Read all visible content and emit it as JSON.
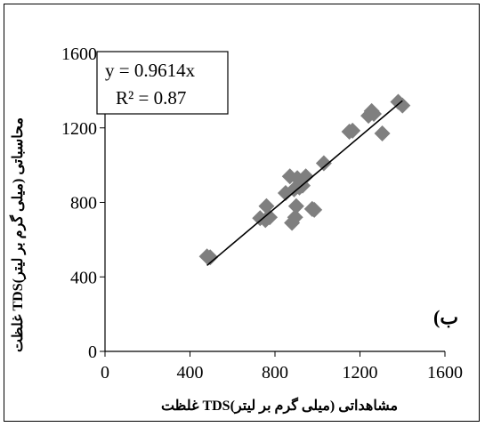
{
  "chart_data": {
    "type": "scatter",
    "title": "",
    "xlabel": "غلظت TDSمشاهداتی (میلی گرم بر لیتر)",
    "ylabel": "غلظت TDSمحاسباتی (میلی گرم بر لیتر)",
    "xlim": [
      0,
      1600
    ],
    "ylim": [
      0,
      1600
    ],
    "x_ticks": [
      "0",
      "400",
      "800",
      "1200",
      "1600"
    ],
    "y_ticks": [
      "0",
      "400",
      "800",
      "1200",
      "1600"
    ],
    "grid": false,
    "panel_label": "ب)",
    "marker": "diamond",
    "marker_color": "#7f7f7f",
    "series": [
      {
        "points": [
          [
            480,
            510
          ],
          [
            495,
            505
          ],
          [
            730,
            715
          ],
          [
            755,
            705
          ],
          [
            760,
            780
          ],
          [
            775,
            720
          ],
          [
            850,
            850
          ],
          [
            870,
            940
          ],
          [
            880,
            690
          ],
          [
            890,
            870
          ],
          [
            895,
            720
          ],
          [
            900,
            780
          ],
          [
            905,
            930
          ],
          [
            915,
            880
          ],
          [
            930,
            890
          ],
          [
            945,
            940
          ],
          [
            975,
            765
          ],
          [
            985,
            760
          ],
          [
            1030,
            1010
          ],
          [
            1150,
            1180
          ],
          [
            1165,
            1185
          ],
          [
            1240,
            1265
          ],
          [
            1255,
            1290
          ],
          [
            1265,
            1275
          ],
          [
            1305,
            1170
          ],
          [
            1380,
            1340
          ],
          [
            1400,
            1320
          ]
        ]
      }
    ],
    "trendline": {
      "slope": 0.9614,
      "x_range": [
        480,
        1400
      ],
      "equation": "y = 0.9614x",
      "r2": "R² = 0.87"
    }
  }
}
